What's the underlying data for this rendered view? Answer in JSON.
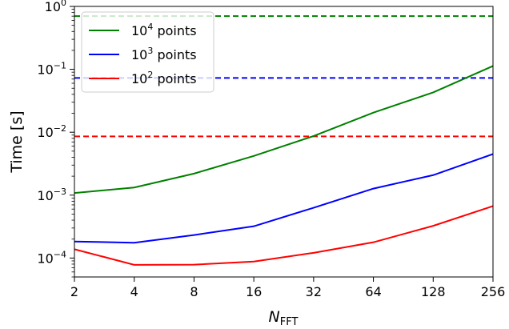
{
  "chart_data": {
    "type": "line",
    "ylabel": "Time [s]",
    "xlabel": {
      "main": "N",
      "sub": "FFT"
    },
    "x": [
      2,
      4,
      8,
      16,
      32,
      64,
      128,
      256
    ],
    "x_scale": "log2",
    "y_scale": "log10",
    "xlim": [
      2,
      256
    ],
    "ylim": [
      5e-05,
      1
    ],
    "x_ticks": [
      {
        "value": 2,
        "label": "2"
      },
      {
        "value": 4,
        "label": "4"
      },
      {
        "value": 8,
        "label": "8"
      },
      {
        "value": 16,
        "label": "16"
      },
      {
        "value": 32,
        "label": "32"
      },
      {
        "value": 64,
        "label": "64"
      },
      {
        "value": 128,
        "label": "128"
      },
      {
        "value": 256,
        "label": "256"
      }
    ],
    "y_ticks": [
      {
        "value": 0.0001,
        "base": "10",
        "exp": "−4"
      },
      {
        "value": 0.001,
        "base": "10",
        "exp": "−3"
      },
      {
        "value": 0.01,
        "base": "10",
        "exp": "−2"
      },
      {
        "value": 0.1,
        "base": "10",
        "exp": "−1"
      },
      {
        "value": 1,
        "base": "10",
        "exp": "0"
      }
    ],
    "grid": false,
    "legend_position": "top-left",
    "series": [
      {
        "key": "1e4",
        "legend": {
          "base": "10",
          "exp": "4",
          "suffix": " points"
        },
        "color": "#008000",
        "values": [
          0.00108,
          0.00132,
          0.0022,
          0.0042,
          0.0087,
          0.0205,
          0.043,
          0.113
        ],
        "reference": 0.7
      },
      {
        "key": "1e3",
        "legend": {
          "base": "10",
          "exp": "3",
          "suffix": " points"
        },
        "color": "#0000ff",
        "values": [
          0.000183,
          0.000175,
          0.000232,
          0.00032,
          0.00063,
          0.00127,
          0.00208,
          0.0045
        ],
        "reference": 0.073
      },
      {
        "key": "1e2",
        "legend": {
          "base": "10",
          "exp": "2",
          "suffix": " points"
        },
        "color": "#ff0000",
        "values": [
          0.000138,
          7.8e-05,
          7.85e-05,
          8.8e-05,
          0.000121,
          0.000178,
          0.000325,
          0.00067
        ],
        "reference": 0.0086
      }
    ]
  }
}
